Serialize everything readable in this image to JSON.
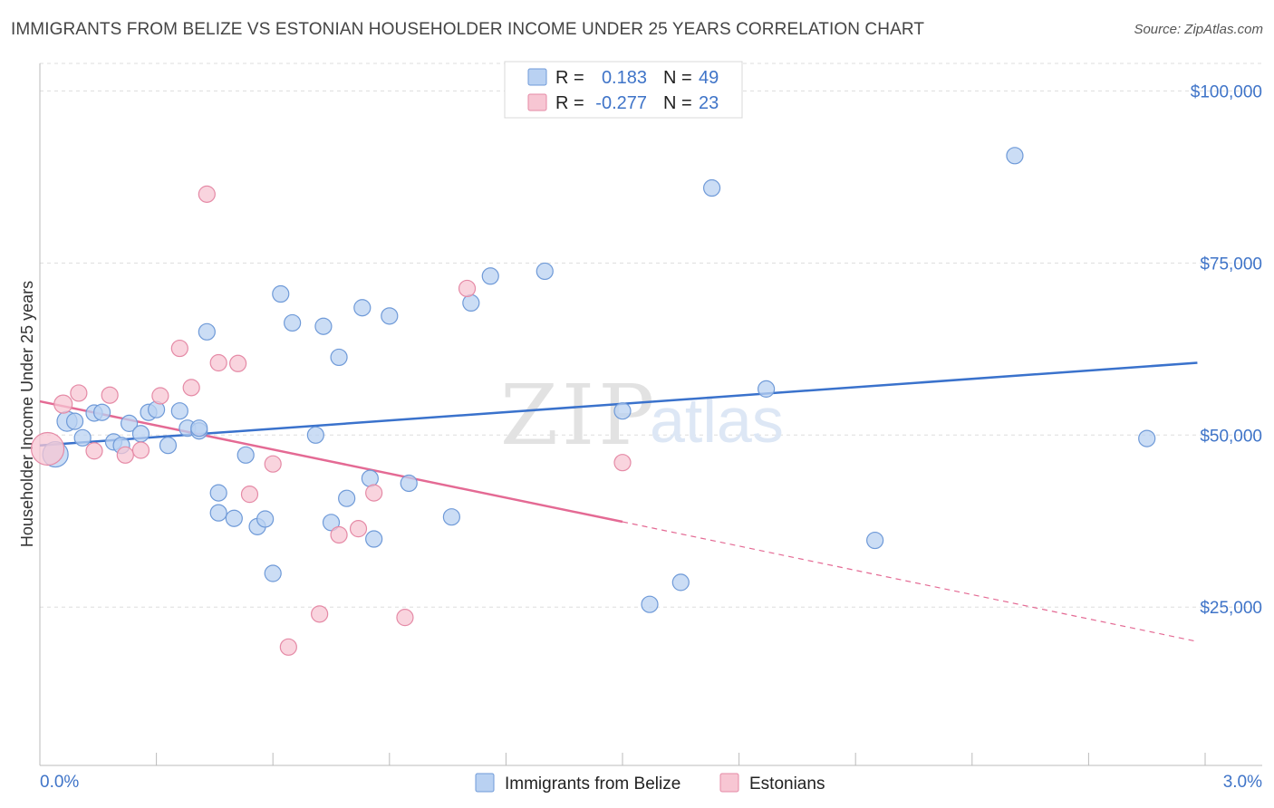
{
  "title": "IMMIGRANTS FROM BELIZE VS ESTONIAN HOUSEHOLDER INCOME UNDER 25 YEARS CORRELATION CHART",
  "source": "Source: ZipAtlas.com",
  "watermark": {
    "zip": "ZIP",
    "atlas": "atlas"
  },
  "colors": {
    "blue_fill": "#b9d1f2",
    "blue_stroke": "#6f9ad8",
    "blue_line": "#3a72cc",
    "pink_fill": "#f7c6d3",
    "pink_stroke": "#e58aa6",
    "pink_line": "#e46a94",
    "tick_text": "#3f74c8",
    "grid": "#dddddd"
  },
  "legend": {
    "rows": [
      {
        "r_label": "R =",
        "r_value": "0.183",
        "n_label": "N =",
        "n_value": "49"
      },
      {
        "r_label": "R =",
        "r_value": "-0.277",
        "n_label": "N =",
        "n_value": "23"
      }
    ]
  },
  "chart_data": {
    "type": "scatter",
    "title": "IMMIGRANTS FROM BELIZE VS ESTONIAN HOUSEHOLDER INCOME UNDER 25 YEARS CORRELATION CHART",
    "xlabel": "",
    "ylabel": "Householder Income Under 25 years",
    "xlim": [
      0,
      3.0
    ],
    "ylim": [
      2000,
      104000
    ],
    "x_tick_labels": [
      "0.0%",
      "3.0%"
    ],
    "y_ticks": [
      25000,
      50000,
      75000,
      100000
    ],
    "y_tick_labels": [
      "$25,000",
      "$50,000",
      "$75,000",
      "$100,000"
    ],
    "grid": true,
    "series": [
      {
        "name": "Immigrants from Belize",
        "color": "blue",
        "r": 0.183,
        "n": 49,
        "trend": {
          "x": [
            0.0,
            2.98
          ],
          "y": [
            48500,
            60500
          ],
          "dashed_from": null
        },
        "points": [
          [
            0.04,
            47200,
            14
          ],
          [
            0.07,
            52000,
            11
          ],
          [
            0.09,
            52000,
            9
          ],
          [
            0.11,
            49600,
            9
          ],
          [
            0.14,
            53200,
            9
          ],
          [
            0.16,
            53300,
            9
          ],
          [
            0.19,
            49000,
            9
          ],
          [
            0.21,
            48500,
            9
          ],
          [
            0.23,
            51700,
            9
          ],
          [
            0.26,
            50200,
            9
          ],
          [
            0.28,
            53300,
            9
          ],
          [
            0.3,
            53700,
            9
          ],
          [
            0.33,
            48500,
            9
          ],
          [
            0.36,
            53500,
            9
          ],
          [
            0.38,
            51000,
            9
          ],
          [
            0.41,
            50600,
            9
          ],
          [
            0.43,
            65000,
            9
          ],
          [
            0.46,
            41600,
            9
          ],
          [
            0.46,
            38700,
            9
          ],
          [
            0.5,
            37900,
            9
          ],
          [
            0.53,
            47100,
            9
          ],
          [
            0.56,
            36700,
            9
          ],
          [
            0.58,
            37800,
            9
          ],
          [
            0.6,
            29900,
            9
          ],
          [
            0.62,
            70500,
            9
          ],
          [
            0.65,
            66300,
            9
          ],
          [
            0.71,
            50000,
            9
          ],
          [
            0.73,
            65800,
            9
          ],
          [
            0.75,
            37300,
            9
          ],
          [
            0.77,
            61300,
            9
          ],
          [
            0.79,
            40800,
            9
          ],
          [
            0.83,
            68500,
            9
          ],
          [
            0.85,
            43700,
            9
          ],
          [
            0.86,
            34900,
            9
          ],
          [
            0.9,
            67300,
            9
          ],
          [
            0.95,
            43000,
            9
          ],
          [
            1.06,
            38100,
            9
          ],
          [
            1.11,
            69200,
            9
          ],
          [
            1.16,
            73100,
            9
          ],
          [
            1.3,
            73800,
            9
          ],
          [
            1.5,
            53500,
            9
          ],
          [
            1.57,
            25400,
            9
          ],
          [
            1.65,
            28600,
            9
          ],
          [
            1.73,
            85900,
            9
          ],
          [
            1.87,
            56700,
            9
          ],
          [
            2.15,
            34700,
            9
          ],
          [
            2.51,
            90600,
            9
          ],
          [
            2.85,
            49500,
            9
          ],
          [
            0.41,
            51000,
            9
          ]
        ]
      },
      {
        "name": "Estonians",
        "color": "pink",
        "r": -0.277,
        "n": 23,
        "trend": {
          "x": [
            0.0,
            1.5
          ],
          "y": [
            54900,
            37400
          ],
          "dashed_to": [
            2.98,
            20000
          ]
        },
        "points": [
          [
            0.02,
            48000,
            18
          ],
          [
            0.06,
            54500,
            10
          ],
          [
            0.1,
            56100,
            9
          ],
          [
            0.14,
            47700,
            9
          ],
          [
            0.18,
            55800,
            9
          ],
          [
            0.22,
            47100,
            9
          ],
          [
            0.26,
            47800,
            9
          ],
          [
            0.31,
            55700,
            9
          ],
          [
            0.36,
            62600,
            9
          ],
          [
            0.39,
            56900,
            9
          ],
          [
            0.43,
            85000,
            9
          ],
          [
            0.46,
            60500,
            9
          ],
          [
            0.51,
            60400,
            9
          ],
          [
            0.54,
            41400,
            9
          ],
          [
            0.6,
            45800,
            9
          ],
          [
            0.64,
            19200,
            9
          ],
          [
            0.72,
            24000,
            9
          ],
          [
            0.77,
            35500,
            9
          ],
          [
            0.82,
            36400,
            9
          ],
          [
            0.86,
            41600,
            9
          ],
          [
            0.94,
            23500,
            9
          ],
          [
            1.1,
            71300,
            9
          ],
          [
            1.5,
            46000,
            9
          ]
        ]
      }
    ]
  },
  "bottom_legend": {
    "items": [
      "Immigrants from Belize",
      "Estonians"
    ]
  }
}
